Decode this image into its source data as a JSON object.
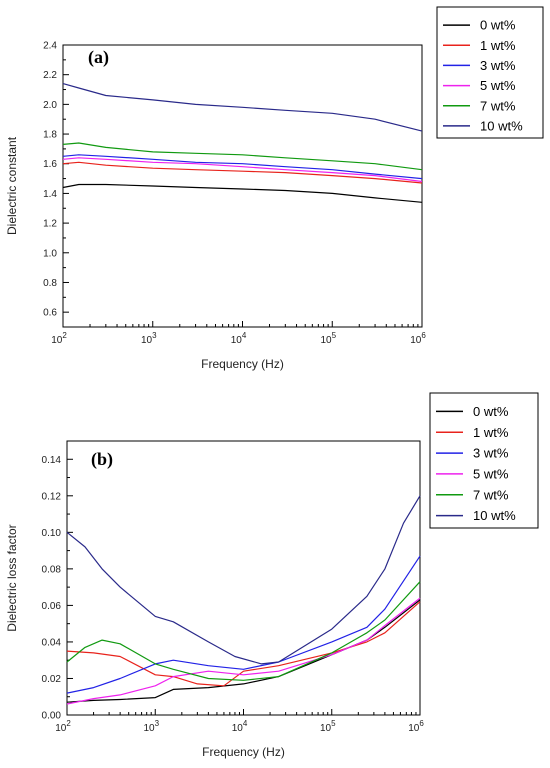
{
  "chart_data": [
    {
      "type": "line",
      "panel_label": "(a)",
      "xlabel": "Frequency (Hz)",
      "ylabel": "Dielectric constant",
      "xscale": "log",
      "xlim": [
        100,
        1000000
      ],
      "ylim": [
        0.5,
        2.4
      ],
      "xticks": [
        100,
        1000,
        10000,
        100000,
        1000000
      ],
      "xtick_labels": [
        "10^2",
        "10^3",
        "10^4",
        "10^5",
        "10^6"
      ],
      "yticks": [
        0.6,
        0.8,
        1.0,
        1.2,
        1.4,
        1.6,
        1.8,
        2.0,
        2.2,
        2.4
      ],
      "ytick_labels": [
        "0.6",
        "0.8",
        "1.0",
        "1.2",
        "1.4",
        "1.6",
        "1.8",
        "2.0",
        "2.2",
        "2.4"
      ],
      "legend_position": "top-right (outside)",
      "series": [
        {
          "name": "0 wt%",
          "color": "#000000",
          "x": [
            100,
            150,
            300,
            1000,
            3000,
            10000,
            30000,
            100000,
            300000,
            1000000
          ],
          "y": [
            1.44,
            1.46,
            1.46,
            1.45,
            1.44,
            1.43,
            1.42,
            1.4,
            1.37,
            1.34
          ]
        },
        {
          "name": "1 wt%",
          "color": "#e8231c",
          "x": [
            100,
            150,
            300,
            1000,
            3000,
            10000,
            30000,
            100000,
            300000,
            1000000
          ],
          "y": [
            1.6,
            1.61,
            1.59,
            1.57,
            1.56,
            1.55,
            1.54,
            1.52,
            1.5,
            1.47
          ]
        },
        {
          "name": "3 wt%",
          "color": "#2222e6",
          "x": [
            100,
            150,
            300,
            1000,
            3000,
            10000,
            30000,
            100000,
            300000,
            1000000
          ],
          "y": [
            1.65,
            1.66,
            1.65,
            1.63,
            1.61,
            1.6,
            1.58,
            1.56,
            1.53,
            1.5
          ]
        },
        {
          "name": "5 wt%",
          "color": "#ee22ee",
          "x": [
            100,
            150,
            300,
            1000,
            3000,
            10000,
            30000,
            100000,
            300000,
            1000000
          ],
          "y": [
            1.63,
            1.64,
            1.63,
            1.61,
            1.6,
            1.58,
            1.56,
            1.54,
            1.52,
            1.48
          ]
        },
        {
          "name": "7 wt%",
          "color": "#119a11",
          "x": [
            100,
            150,
            300,
            1000,
            3000,
            10000,
            30000,
            100000,
            300000,
            1000000
          ],
          "y": [
            1.73,
            1.74,
            1.71,
            1.68,
            1.67,
            1.66,
            1.64,
            1.62,
            1.6,
            1.56
          ]
        },
        {
          "name": "10 wt%",
          "color": "#2a2a8a",
          "x": [
            100,
            150,
            300,
            1000,
            3000,
            10000,
            30000,
            100000,
            300000,
            1000000
          ],
          "y": [
            2.14,
            2.11,
            2.06,
            2.03,
            2.0,
            1.98,
            1.96,
            1.94,
            1.9,
            1.82
          ]
        }
      ]
    },
    {
      "type": "line",
      "panel_label": "(b)",
      "xlabel": "Frequency (Hz)",
      "ylabel": "Dielectric loss factor",
      "xscale": "log",
      "xlim": [
        100,
        1000000
      ],
      "ylim": [
        0.0,
        0.15
      ],
      "xticks": [
        100,
        1000,
        10000,
        100000,
        1000000
      ],
      "xtick_labels": [
        "10^2",
        "10^3",
        "10^4",
        "10^5",
        "10^6"
      ],
      "yticks": [
        0.0,
        0.02,
        0.04,
        0.06,
        0.08,
        0.1,
        0.12,
        0.14
      ],
      "ytick_labels": [
        "0.00",
        "0.02",
        "0.04",
        "0.06",
        "0.08",
        "0.10",
        "0.12",
        "0.14"
      ],
      "legend_position": "top-right (inside)",
      "series": [
        {
          "name": "0 wt%",
          "color": "#000000",
          "x": [
            100,
            200,
            400,
            1000,
            1600,
            4000,
            10000,
            25000,
            100000,
            250000,
            400000,
            1000000
          ],
          "y": [
            0.007,
            0.008,
            0.0085,
            0.0095,
            0.014,
            0.015,
            0.017,
            0.021,
            0.033,
            0.041,
            0.048,
            0.063
          ]
        },
        {
          "name": "1 wt%",
          "color": "#e8231c",
          "x": [
            100,
            200,
            400,
            1000,
            1600,
            3000,
            6000,
            10000,
            25000,
            100000,
            250000,
            400000,
            1000000
          ],
          "y": [
            0.035,
            0.034,
            0.032,
            0.022,
            0.021,
            0.017,
            0.016,
            0.024,
            0.027,
            0.034,
            0.04,
            0.045,
            0.062
          ]
        },
        {
          "name": "3 wt%",
          "color": "#2222e6",
          "x": [
            100,
            200,
            400,
            1000,
            1600,
            4000,
            10000,
            25000,
            100000,
            250000,
            400000,
            1000000
          ],
          "y": [
            0.012,
            0.015,
            0.02,
            0.028,
            0.03,
            0.027,
            0.025,
            0.029,
            0.04,
            0.048,
            0.058,
            0.087
          ]
        },
        {
          "name": "5 wt%",
          "color": "#ee22ee",
          "x": [
            100,
            200,
            400,
            1000,
            1600,
            4000,
            10000,
            25000,
            100000,
            250000,
            400000,
            1000000
          ],
          "y": [
            0.006,
            0.009,
            0.011,
            0.016,
            0.021,
            0.024,
            0.022,
            0.024,
            0.033,
            0.041,
            0.049,
            0.064
          ]
        },
        {
          "name": "7 wt%",
          "color": "#119a11",
          "x": [
            100,
            160,
            250,
            400,
            1000,
            1600,
            4000,
            10000,
            25000,
            100000,
            250000,
            400000,
            1000000
          ],
          "y": [
            0.029,
            0.037,
            0.041,
            0.039,
            0.028,
            0.025,
            0.02,
            0.019,
            0.021,
            0.034,
            0.045,
            0.052,
            0.073
          ]
        },
        {
          "name": "10 wt%",
          "color": "#2a2a8a",
          "x": [
            100,
            160,
            250,
            400,
            1000,
            1600,
            4000,
            8000,
            16000,
            25000,
            100000,
            250000,
            400000,
            650000,
            1000000
          ],
          "y": [
            0.1,
            0.092,
            0.08,
            0.07,
            0.054,
            0.051,
            0.04,
            0.032,
            0.028,
            0.029,
            0.047,
            0.065,
            0.08,
            0.105,
            0.12
          ]
        }
      ]
    }
  ]
}
